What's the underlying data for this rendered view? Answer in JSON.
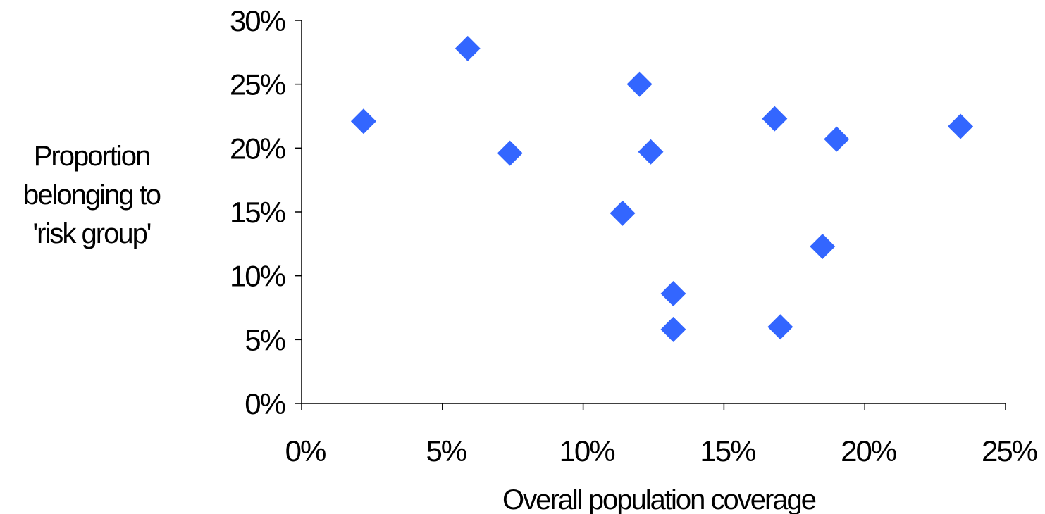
{
  "chart_data": {
    "type": "scatter",
    "title": "",
    "xlabel": "Overall population coverage",
    "ylabel_lines": [
      "Proportion",
      "belonging to",
      "'risk group'"
    ],
    "xlim": [
      0,
      25
    ],
    "ylim": [
      0,
      30
    ],
    "x_ticks": [
      0,
      5,
      10,
      15,
      20,
      25
    ],
    "y_ticks": [
      0,
      5,
      10,
      15,
      20,
      25,
      30
    ],
    "x_tick_labels": [
      "0%",
      "5%",
      "10%",
      "15%",
      "20%",
      "25%"
    ],
    "y_tick_labels": [
      "0%",
      "5%",
      "10%",
      "15%",
      "20%",
      "25%",
      "30%"
    ],
    "marker": "diamond",
    "grid": false,
    "legend": "none",
    "colors": {
      "marker": "#3366FF",
      "axis": "#000000"
    },
    "series": [
      {
        "points": [
          {
            "x": 2.2,
            "y": 22.1
          },
          {
            "x": 5.9,
            "y": 27.8
          },
          {
            "x": 7.4,
            "y": 19.6
          },
          {
            "x": 11.4,
            "y": 14.9
          },
          {
            "x": 12.0,
            "y": 25.0
          },
          {
            "x": 12.4,
            "y": 19.7
          },
          {
            "x": 13.2,
            "y": 8.6
          },
          {
            "x": 13.2,
            "y": 5.8
          },
          {
            "x": 16.8,
            "y": 22.3
          },
          {
            "x": 17.0,
            "y": 6.0
          },
          {
            "x": 18.5,
            "y": 12.3
          },
          {
            "x": 19.0,
            "y": 20.7
          },
          {
            "x": 23.4,
            "y": 21.7
          }
        ]
      }
    ]
  }
}
